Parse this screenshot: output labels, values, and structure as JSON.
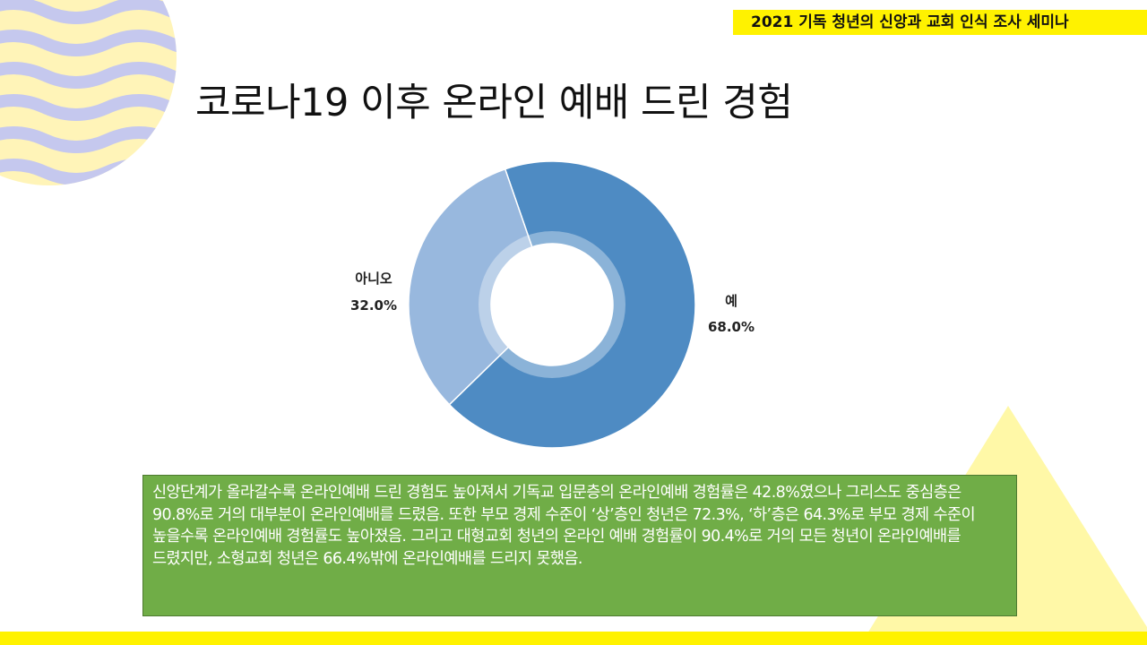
{
  "banner": {
    "text": "2021 기독 청년의 신앙과 교회 인식 조사 세미나"
  },
  "slide": {
    "title": "코로나19 이후 온라인 예배 드린 경험"
  },
  "chart_data": {
    "type": "pie",
    "donut": true,
    "categories": [
      "예",
      "아니오"
    ],
    "values": [
      68.0,
      32.0
    ],
    "value_labels": [
      "68.0%",
      "32.0%"
    ],
    "colors": [
      "#4e8bc3",
      "#98b8de"
    ],
    "title": "",
    "legend": "none"
  },
  "summary": {
    "text": "신앙단계가 올라갈수록 온라인예배 드린 경험도 높아져서 기독교 입문층의 온라인예배 경험률은 42.8%였으나 그리스도 중심층은 90.8%로 거의 대부분이 온라인예배를 드렸음. 또한 부모 경제 수준이 ‘상’층인 청년은 72.3%, ‘하’층은 64.3%로 부모 경제 수준이 높을수록 온라인예배 경험률도 높아졌음. 그리고 대형교회 청년의 온라인 예배 경험률이 90.4%로 거의 모든 청년이 온라인예배를 드렸지만, 소형교회 청년은 66.4%밖에 온라인예배를 드리지 못했음."
  },
  "colors": {
    "accent_yellow": "#fff200",
    "summary_green": "#70ad47",
    "wave_lavender": "#c5c8ee",
    "wave_cream": "#fff4b8"
  }
}
